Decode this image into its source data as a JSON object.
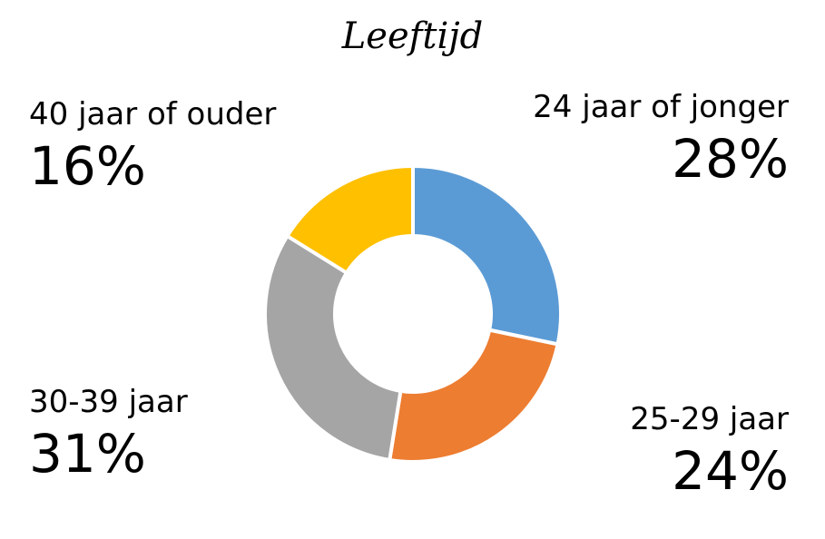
{
  "chart_data": {
    "type": "pie",
    "title": "Leeftijd",
    "categories": [
      "24 jaar of jonger",
      "25-29 jaar",
      "30-39 jaar",
      "40 jaar of ouder"
    ],
    "values": [
      28,
      24,
      31,
      16
    ],
    "value_labels": [
      "28%",
      "24%",
      "31%",
      "16%"
    ],
    "colors": [
      "#5B9BD5",
      "#ED7D31",
      "#A5A5A5",
      "#FFC000"
    ],
    "donut": true,
    "legend": "none"
  }
}
